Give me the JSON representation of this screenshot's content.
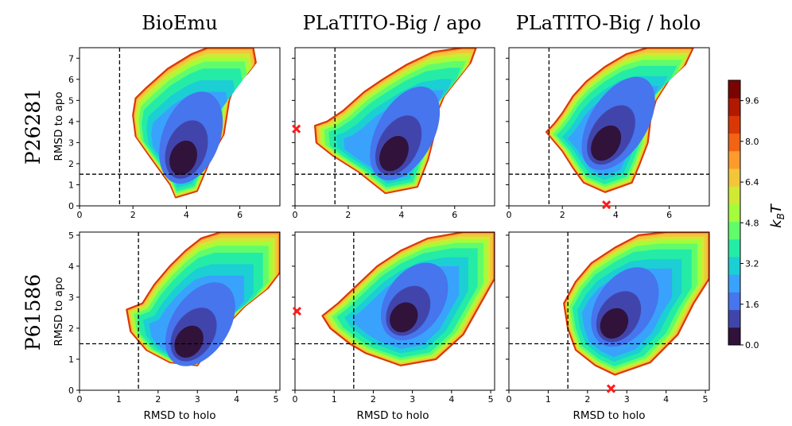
{
  "chart_data": {
    "type": "contour",
    "columns": [
      "BioEmu",
      "PLaTITO-Big / apo",
      "PLaTITO-Big / holo"
    ],
    "rows": [
      "P26281",
      "P61586"
    ],
    "xlabel": "RMSD to holo",
    "ylabel": "RMSD to apo",
    "colorbar": {
      "label": "k_BT",
      "label_main": "k",
      "label_sub": "B",
      "label_tail": "T",
      "range": [
        0.0,
        10.4
      ],
      "ticks": [
        "0.0",
        "1.6",
        "3.2",
        "4.8",
        "6.4",
        "8.0",
        "9.6"
      ],
      "colors": [
        "#30123b",
        "#4145ab",
        "#4675ed",
        "#39a2fc",
        "#1bcfd4",
        "#24eca6",
        "#61fc6c",
        "#a4fc3b",
        "#d1e834",
        "#f3c63a",
        "#fe9b2d",
        "#f36315",
        "#d93806",
        "#b11901",
        "#7a0402"
      ],
      "outline_color": "#d93806"
    },
    "threshold_lines": {
      "x": 1.5,
      "y": 1.5
    },
    "panels": [
      {
        "row": "P26281",
        "column": "BioEmu",
        "xlim": [
          0,
          7.5
        ],
        "ylim": [
          0,
          7.5
        ],
        "xticks": [
          "0",
          "2",
          "4",
          "6"
        ],
        "yticks": [
          "0",
          "1",
          "2",
          "3",
          "4",
          "5",
          "6",
          "7"
        ],
        "min_center": [
          3.8,
          2.0
        ],
        "marker": null,
        "outline_pts": [
          [
            4.4,
            0.7
          ],
          [
            3.6,
            0.4
          ],
          [
            3.4,
            1.0
          ],
          [
            2.6,
            2.4
          ],
          [
            2.1,
            3.3
          ],
          [
            2.0,
            4.3
          ],
          [
            2.1,
            5.1
          ],
          [
            2.5,
            5.6
          ],
          [
            3.3,
            6.5
          ],
          [
            4.2,
            7.2
          ],
          [
            4.8,
            7.5
          ],
          [
            6.5,
            7.5
          ],
          [
            6.6,
            6.8
          ],
          [
            6.3,
            6.3
          ],
          [
            5.8,
            5.7
          ],
          [
            5.6,
            5.0
          ],
          [
            5.5,
            4.2
          ],
          [
            5.4,
            3.4
          ],
          [
            5.0,
            2.5
          ]
        ],
        "spine_start": [
          3.9,
          1.2
        ],
        "spine_end": [
          5.6,
          6.8
        ]
      },
      {
        "row": "P26281",
        "column": "PLaTITO-Big / apo",
        "xlim": [
          0,
          7.5
        ],
        "ylim": [
          0,
          7.5
        ],
        "xticks": [
          "0",
          "2",
          "4",
          "6"
        ],
        "yticks": [
          "0",
          "1",
          "2",
          "3",
          "4",
          "5",
          "6",
          "7"
        ],
        "min_center": [
          3.6,
          2.2
        ],
        "marker": [
          0.05,
          3.65
        ],
        "outline_pts": [
          [
            4.6,
            0.9
          ],
          [
            3.4,
            0.6
          ],
          [
            2.4,
            1.6
          ],
          [
            1.4,
            2.4
          ],
          [
            0.8,
            3.0
          ],
          [
            0.75,
            3.8
          ],
          [
            1.2,
            4.0
          ],
          [
            1.8,
            4.5
          ],
          [
            2.6,
            5.4
          ],
          [
            3.3,
            6.0
          ],
          [
            4.2,
            6.7
          ],
          [
            5.2,
            7.3
          ],
          [
            6.3,
            7.5
          ],
          [
            6.8,
            7.5
          ],
          [
            6.6,
            6.8
          ],
          [
            6.1,
            6.0
          ],
          [
            5.6,
            5.2
          ],
          [
            5.3,
            4.3
          ],
          [
            5.2,
            3.2
          ],
          [
            5.0,
            2.2
          ]
        ],
        "spine_start": [
          3.7,
          1.4
        ],
        "spine_end": [
          6.1,
          7.0
        ]
      },
      {
        "row": "P26281",
        "column": "PLaTITO-Big / holo",
        "xlim": [
          0,
          7.5
        ],
        "ylim": [
          0,
          7.5
        ],
        "xticks": [
          "0",
          "2",
          "4",
          "6"
        ],
        "yticks": [
          "0",
          "1",
          "2",
          "3",
          "4",
          "5",
          "6",
          "7"
        ],
        "min_center": [
          3.5,
          2.7
        ],
        "marker": [
          3.65,
          0.05
        ],
        "outline_pts": [
          [
            4.6,
            1.1
          ],
          [
            3.6,
            0.65
          ],
          [
            2.8,
            1.1
          ],
          [
            2.4,
            1.8
          ],
          [
            2.0,
            2.6
          ],
          [
            1.4,
            3.5
          ],
          [
            1.7,
            3.9
          ],
          [
            2.0,
            4.4
          ],
          [
            2.4,
            5.2
          ],
          [
            2.9,
            5.9
          ],
          [
            3.6,
            6.6
          ],
          [
            4.4,
            7.2
          ],
          [
            5.2,
            7.5
          ],
          [
            6.9,
            7.5
          ],
          [
            6.6,
            6.7
          ],
          [
            6.0,
            6.0
          ],
          [
            5.5,
            5.0
          ],
          [
            5.3,
            4.1
          ],
          [
            5.2,
            3.0
          ],
          [
            4.9,
            2.0
          ]
        ],
        "spine_start": [
          3.6,
          1.6
        ],
        "spine_end": [
          6.3,
          7.1
        ]
      },
      {
        "row": "P61586",
        "column": "BioEmu",
        "xlim": [
          0,
          5.1
        ],
        "ylim": [
          0,
          5.1
        ],
        "xticks": [
          "0",
          "1",
          "2",
          "3",
          "4",
          "5"
        ],
        "yticks": [
          "0",
          "1",
          "2",
          "3",
          "4",
          "5"
        ],
        "min_center": [
          2.7,
          1.4
        ],
        "marker": null,
        "outline_pts": [
          [
            3.0,
            0.8
          ],
          [
            2.3,
            0.9
          ],
          [
            1.7,
            1.3
          ],
          [
            1.3,
            1.9
          ],
          [
            1.2,
            2.6
          ],
          [
            1.6,
            2.8
          ],
          [
            1.9,
            3.4
          ],
          [
            2.3,
            4.0
          ],
          [
            2.7,
            4.5
          ],
          [
            3.1,
            4.9
          ],
          [
            3.6,
            5.1
          ],
          [
            5.1,
            5.1
          ],
          [
            5.1,
            3.8
          ],
          [
            4.8,
            3.3
          ],
          [
            4.2,
            2.7
          ],
          [
            3.6,
            1.9
          ]
        ],
        "spine_start": [
          2.6,
          1.1
        ],
        "spine_end": [
          4.3,
          4.4
        ]
      },
      {
        "row": "P61586",
        "column": "PLaTITO-Big / apo",
        "xlim": [
          0,
          5.1
        ],
        "ylim": [
          0,
          5.1
        ],
        "xticks": [
          "0",
          "1",
          "2",
          "3",
          "4",
          "5"
        ],
        "yticks": [
          "0",
          "1",
          "2",
          "3",
          "4",
          "5"
        ],
        "min_center": [
          2.7,
          2.2
        ],
        "marker": [
          0.05,
          2.55
        ],
        "outline_pts": [
          [
            3.6,
            1.0
          ],
          [
            2.7,
            0.8
          ],
          [
            1.8,
            1.2
          ],
          [
            1.4,
            1.5
          ],
          [
            0.9,
            2.0
          ],
          [
            0.7,
            2.4
          ],
          [
            1.1,
            2.8
          ],
          [
            1.6,
            3.4
          ],
          [
            2.1,
            4.0
          ],
          [
            2.7,
            4.5
          ],
          [
            3.4,
            4.9
          ],
          [
            4.3,
            5.1
          ],
          [
            5.1,
            5.1
          ],
          [
            5.1,
            3.6
          ],
          [
            4.7,
            2.7
          ],
          [
            4.3,
            1.8
          ]
        ],
        "spine_start": [
          2.7,
          1.6
        ],
        "spine_end": [
          4.3,
          4.6
        ]
      },
      {
        "row": "P61586",
        "column": "PLaTITO-Big / holo",
        "xlim": [
          0,
          5.1
        ],
        "ylim": [
          0,
          5.1
        ],
        "xticks": [
          "0",
          "1",
          "2",
          "3",
          "4",
          "5"
        ],
        "yticks": [
          "0",
          "1",
          "2",
          "3",
          "4",
          "5"
        ],
        "min_center": [
          2.6,
          2.0
        ],
        "marker": [
          2.6,
          0.05
        ],
        "outline_pts": [
          [
            3.6,
            0.9
          ],
          [
            2.7,
            0.5
          ],
          [
            2.2,
            0.8
          ],
          [
            1.7,
            1.3
          ],
          [
            1.5,
            2.0
          ],
          [
            1.4,
            2.8
          ],
          [
            1.7,
            3.5
          ],
          [
            2.1,
            4.1
          ],
          [
            2.7,
            4.6
          ],
          [
            3.3,
            5.0
          ],
          [
            4.0,
            5.1
          ],
          [
            5.1,
            5.1
          ],
          [
            5.1,
            3.6
          ],
          [
            4.7,
            2.8
          ],
          [
            4.3,
            1.8
          ]
        ],
        "spine_start": [
          2.6,
          1.4
        ],
        "spine_end": [
          4.2,
          4.5
        ]
      }
    ]
  }
}
